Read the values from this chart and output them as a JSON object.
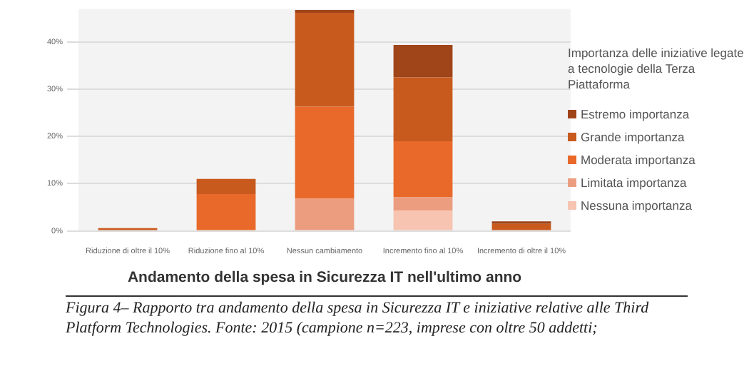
{
  "chart_data": {
    "type": "bar",
    "stacked": true,
    "xlabel": "Andamento della spesa in Sicurezza IT nell'ultimo anno",
    "legend_title": "Importanza delle iniziative legate a tecnologie della Terza Piattaforma",
    "legend": "right",
    "grid": "y",
    "categories": [
      "Riduzione di oltre il 10%",
      "Riduzione fino al 10%",
      "Nessun cambiamento",
      "Incremento fino al 10%",
      "Incremento di oltre il 10%"
    ],
    "series": [
      {
        "name": "Nessuna importanza",
        "color": "#f6c4b0",
        "values": [
          0,
          0,
          0,
          4.3,
          0
        ]
      },
      {
        "name": "Limitata importanza",
        "color": "#ec9d80",
        "values": [
          0,
          0,
          6.8,
          2.8,
          0
        ]
      },
      {
        "name": "Moderata importanza",
        "color": "#e8692a",
        "values": [
          0,
          7.8,
          19.5,
          11.9,
          0
        ]
      },
      {
        "name": "Grande importanza",
        "color": "#c85a1e",
        "values": [
          0.6,
          3.2,
          19.9,
          13.5,
          1.5
        ]
      },
      {
        "name": "Estremo importanza",
        "color": "#a0441a",
        "values": [
          0,
          0,
          0.6,
          6.9,
          0.5
        ]
      }
    ],
    "ylim": [
      0,
      47
    ],
    "yticks": [
      {
        "value": 0,
        "label": "0%"
      },
      {
        "value": 10,
        "label": "10%"
      },
      {
        "value": 20,
        "label": "20%"
      },
      {
        "value": 30,
        "label": "30%"
      },
      {
        "value": 40,
        "label": "40%"
      }
    ],
    "annotations": [
      "Figura 4– Rapporto tra andamento della spesa in Sicurezza IT e iniziative relative alle Third Platform Technologies. Fonte: 2015 (campione n=223, imprese con oltre 50 addetti;"
    ]
  }
}
